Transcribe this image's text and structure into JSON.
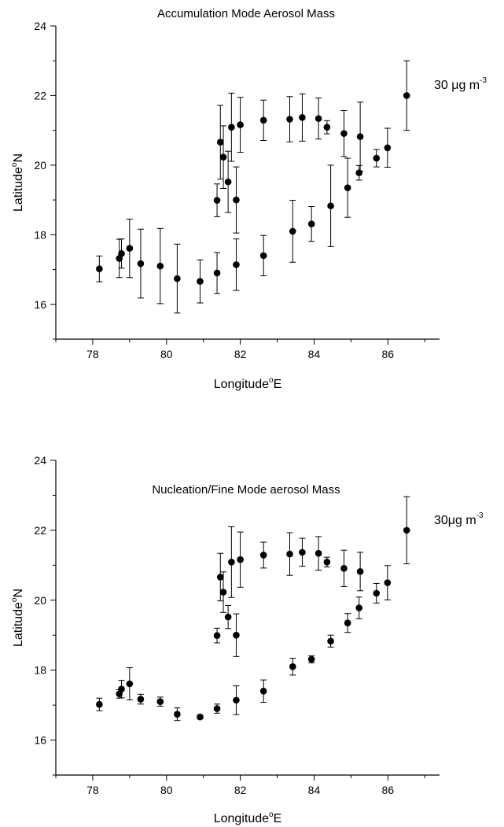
{
  "chart_data": [
    {
      "type": "scatter",
      "title": "Accumulation Mode Aerosol Mass",
      "xlabel": "Longitude",
      "xlabel_sup": "o",
      "xlabel_suffix": "E",
      "ylabel": "Latitude",
      "ylabel_sup": "o",
      "ylabel_suffix": "N",
      "xlim": [
        77,
        87.4
      ],
      "ylim": [
        15,
        24
      ],
      "x_ticks": [
        78,
        80,
        82,
        84,
        86
      ],
      "y_ticks": [
        16,
        18,
        20,
        22,
        24
      ],
      "annotation": {
        "text": "30 μg m",
        "sup": "-3"
      },
      "points": [
        {
          "x": 78.18,
          "y": 17.02,
          "err": 0.37
        },
        {
          "x": 78.72,
          "y": 17.32,
          "err": 0.55
        },
        {
          "x": 78.78,
          "y": 17.46,
          "err": 0.42
        },
        {
          "x": 79.0,
          "y": 17.61,
          "err": 0.84
        },
        {
          "x": 79.3,
          "y": 17.17,
          "err": 0.99
        },
        {
          "x": 79.83,
          "y": 17.1,
          "err": 1.08
        },
        {
          "x": 80.29,
          "y": 16.74,
          "err": 0.99
        },
        {
          "x": 80.91,
          "y": 16.66,
          "err": 0.62
        },
        {
          "x": 81.37,
          "y": 16.9,
          "err": 0.59
        },
        {
          "x": 81.89,
          "y": 17.14,
          "err": 0.74
        },
        {
          "x": 82.63,
          "y": 17.4,
          "err": 0.58
        },
        {
          "x": 83.42,
          "y": 18.1,
          "err": 0.89
        },
        {
          "x": 83.93,
          "y": 18.31,
          "err": 0.5
        },
        {
          "x": 84.45,
          "y": 18.83,
          "err": 1.17
        },
        {
          "x": 84.91,
          "y": 19.35,
          "err": 0.85
        },
        {
          "x": 85.22,
          "y": 19.78,
          "err": 0.21
        },
        {
          "x": 85.69,
          "y": 20.2,
          "err": 0.25
        },
        {
          "x": 85.99,
          "y": 20.5,
          "err": 0.56
        },
        {
          "x": 86.51,
          "y": 22.0,
          "err": 1.0
        },
        {
          "x": 81.37,
          "y": 18.99,
          "err": 0.47
        },
        {
          "x": 81.46,
          "y": 20.66,
          "err": 1.06
        },
        {
          "x": 81.54,
          "y": 20.23,
          "err": 0.9
        },
        {
          "x": 81.67,
          "y": 19.52,
          "err": 0.88
        },
        {
          "x": 81.76,
          "y": 21.09,
          "err": 0.98
        },
        {
          "x": 81.89,
          "y": 19.0,
          "err": 0.95
        },
        {
          "x": 82.0,
          "y": 21.16,
          "err": 0.79
        },
        {
          "x": 82.63,
          "y": 21.29,
          "err": 0.58
        },
        {
          "x": 83.34,
          "y": 21.32,
          "err": 0.65
        },
        {
          "x": 83.68,
          "y": 21.37,
          "err": 0.68
        },
        {
          "x": 84.12,
          "y": 21.34,
          "err": 0.59
        },
        {
          "x": 84.35,
          "y": 21.09,
          "err": 0.19
        },
        {
          "x": 84.81,
          "y": 20.91,
          "err": 0.66
        },
        {
          "x": 85.25,
          "y": 20.82,
          "err": 0.99
        }
      ]
    },
    {
      "type": "scatter",
      "title": "Nucleation/Fine Mode aerosol Mass",
      "xlabel": "Longitude",
      "xlabel_sup": "o",
      "xlabel_suffix": "E",
      "ylabel": "Latitude",
      "ylabel_sup": "o",
      "ylabel_suffix": "N",
      "xlim": [
        77,
        87.4
      ],
      "ylim": [
        15,
        24
      ],
      "x_ticks": [
        78,
        80,
        82,
        84,
        86
      ],
      "y_ticks": [
        16,
        18,
        20,
        22,
        24
      ],
      "annotation": {
        "text": "30μg m",
        "sup": "-3"
      },
      "points": [
        {
          "x": 78.18,
          "y": 17.02,
          "err": 0.18
        },
        {
          "x": 78.72,
          "y": 17.32,
          "err": 0.12
        },
        {
          "x": 78.78,
          "y": 17.46,
          "err": 0.25
        },
        {
          "x": 79.0,
          "y": 17.61,
          "err": 0.46
        },
        {
          "x": 79.3,
          "y": 17.17,
          "err": 0.14
        },
        {
          "x": 79.83,
          "y": 17.1,
          "err": 0.13
        },
        {
          "x": 80.29,
          "y": 16.74,
          "err": 0.18
        },
        {
          "x": 80.91,
          "y": 16.66,
          "err": 0.05
        },
        {
          "x": 81.37,
          "y": 16.9,
          "err": 0.13
        },
        {
          "x": 81.89,
          "y": 17.14,
          "err": 0.41
        },
        {
          "x": 82.63,
          "y": 17.4,
          "err": 0.32
        },
        {
          "x": 83.42,
          "y": 18.1,
          "err": 0.24
        },
        {
          "x": 83.93,
          "y": 18.31,
          "err": 0.1
        },
        {
          "x": 84.45,
          "y": 18.83,
          "err": 0.17
        },
        {
          "x": 84.91,
          "y": 19.35,
          "err": 0.27
        },
        {
          "x": 85.22,
          "y": 19.78,
          "err": 0.31
        },
        {
          "x": 85.69,
          "y": 20.2,
          "err": 0.28
        },
        {
          "x": 85.99,
          "y": 20.5,
          "err": 0.49
        },
        {
          "x": 86.51,
          "y": 22.0,
          "err": 0.96
        },
        {
          "x": 81.37,
          "y": 18.99,
          "err": 0.21
        },
        {
          "x": 81.46,
          "y": 20.66,
          "err": 0.68
        },
        {
          "x": 81.54,
          "y": 20.23,
          "err": 0.58
        },
        {
          "x": 81.67,
          "y": 19.52,
          "err": 0.33
        },
        {
          "x": 81.76,
          "y": 21.09,
          "err": 1.01
        },
        {
          "x": 81.89,
          "y": 19.0,
          "err": 0.61
        },
        {
          "x": 82.0,
          "y": 21.16,
          "err": 0.79
        },
        {
          "x": 82.63,
          "y": 21.29,
          "err": 0.37
        },
        {
          "x": 83.34,
          "y": 21.32,
          "err": 0.61
        },
        {
          "x": 83.68,
          "y": 21.37,
          "err": 0.4
        },
        {
          "x": 84.12,
          "y": 21.34,
          "err": 0.48
        },
        {
          "x": 84.35,
          "y": 21.09,
          "err": 0.14
        },
        {
          "x": 84.81,
          "y": 20.91,
          "err": 0.52
        },
        {
          "x": 85.25,
          "y": 20.82,
          "err": 0.55
        }
      ]
    }
  ]
}
